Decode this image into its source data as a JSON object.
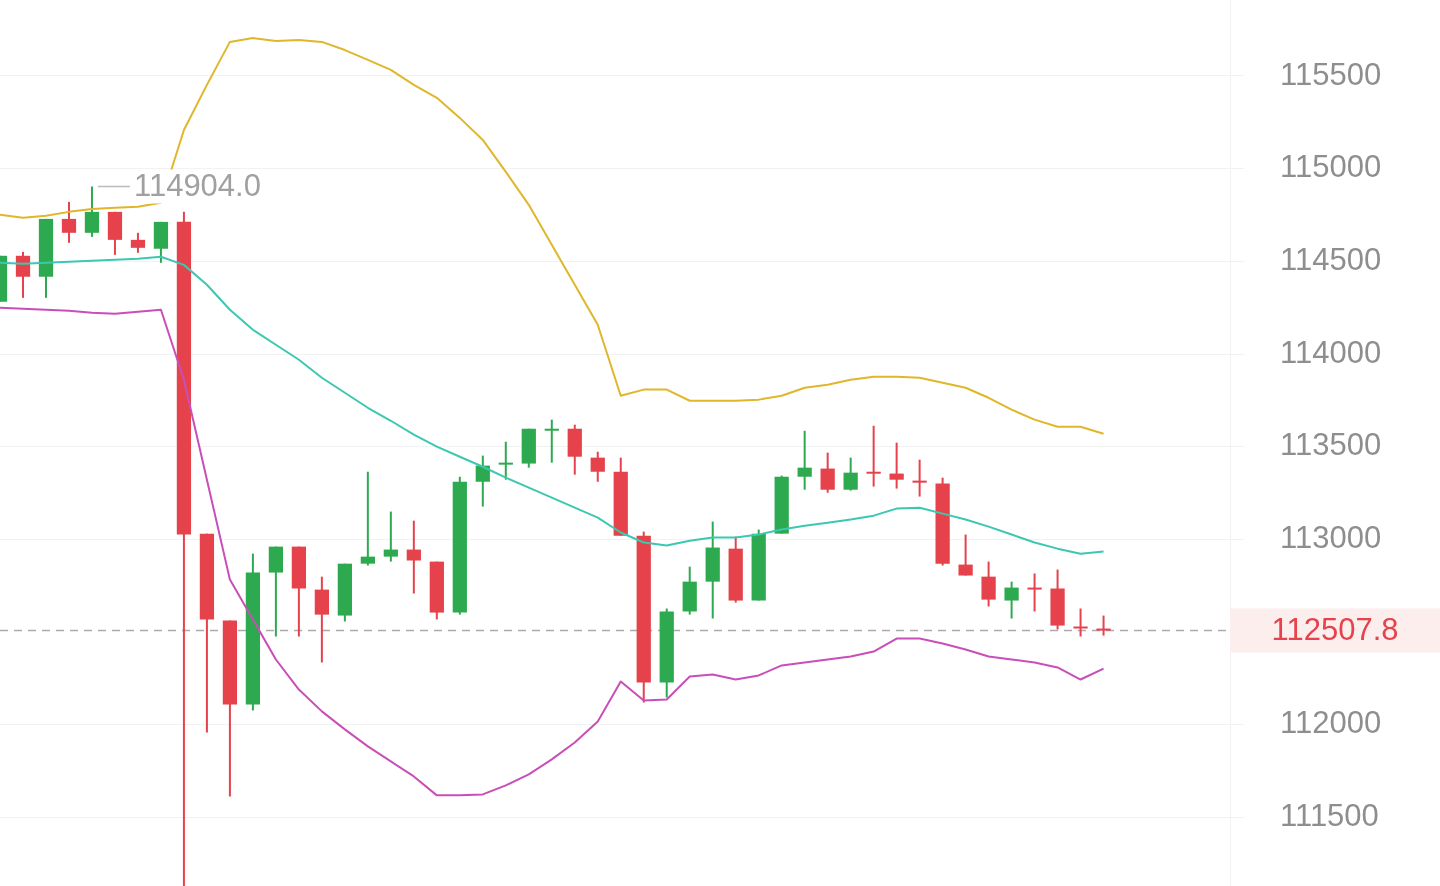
{
  "chart_data": {
    "type": "candlestick",
    "categories": [
      null,
      null,
      null,
      null,
      null,
      null,
      null,
      null,
      null,
      null,
      null,
      null,
      null,
      null,
      null,
      null,
      null,
      null,
      null,
      null,
      null,
      null,
      null,
      null,
      null,
      null,
      null,
      null,
      null,
      null,
      null,
      null,
      null,
      null,
      null,
      null,
      null,
      null,
      null,
      null,
      null,
      null,
      null,
      null,
      null,
      null,
      null,
      null,
      null
    ],
    "ohlc": [
      [
        114282,
        114530,
        114282,
        114530
      ],
      [
        114530,
        114551,
        114303,
        114417
      ],
      [
        114417,
        114729,
        114303,
        114729
      ],
      [
        114729,
        114821,
        114600,
        114654
      ],
      [
        114654,
        114904,
        114632,
        114767
      ],
      [
        114767,
        114767,
        114535,
        114616
      ],
      [
        114616,
        114654,
        114546,
        114573
      ],
      [
        114568,
        114713,
        114492,
        114713
      ],
      [
        114713,
        114767,
        111130,
        113026
      ],
      [
        113031,
        113031,
        111958,
        112568
      ],
      [
        112562,
        112562,
        111613,
        112109
      ],
      [
        112109,
        112923,
        112077,
        112821
      ],
      [
        112821,
        112961,
        112476,
        112961
      ],
      [
        112961,
        112961,
        112476,
        112735
      ],
      [
        112729,
        112799,
        112336,
        112594
      ],
      [
        112589,
        112869,
        112557,
        112869
      ],
      [
        112869,
        113365,
        112859,
        112907
      ],
      [
        112907,
        113150,
        112880,
        112945
      ],
      [
        112945,
        113101,
        112708,
        112886
      ],
      [
        112880,
        112880,
        112568,
        112605
      ],
      [
        112605,
        113338,
        112594,
        113311
      ],
      [
        113311,
        113452,
        113177,
        113398
      ],
      [
        113409,
        113527,
        113322,
        113414
      ],
      [
        113409,
        113597,
        113387,
        113597
      ],
      [
        113592,
        113646,
        113414,
        113597
      ],
      [
        113597,
        113619,
        113349,
        113446
      ],
      [
        113441,
        113473,
        113311,
        113365
      ],
      [
        113365,
        113441,
        113020,
        113020
      ],
      [
        113020,
        113042,
        112120,
        112228
      ],
      [
        112228,
        112627,
        112147,
        112611
      ],
      [
        112611,
        112853,
        112594,
        112772
      ],
      [
        112772,
        113096,
        112573,
        112956
      ],
      [
        112950,
        113015,
        112659,
        112670
      ],
      [
        112670,
        113053,
        112670,
        113031
      ],
      [
        113031,
        113344,
        113031,
        113338
      ],
      [
        113338,
        113586,
        113268,
        113387
      ],
      [
        113382,
        113468,
        113252,
        113268
      ],
      [
        113268,
        113441,
        113263,
        113360
      ],
      [
        113365,
        113613,
        113285,
        113360
      ],
      [
        113355,
        113522,
        113274,
        113322
      ],
      [
        113317,
        113430,
        113231,
        113306
      ],
      [
        113301,
        113333,
        112859,
        112869
      ],
      [
        112864,
        113026,
        112805,
        112805
      ],
      [
        112799,
        112880,
        112638,
        112675
      ],
      [
        112670,
        112772,
        112573,
        112740
      ],
      [
        112740,
        112816,
        112611,
        112735
      ],
      [
        112735,
        112837,
        112514,
        112535
      ],
      [
        112530,
        112627,
        112476,
        112524
      ],
      [
        112519,
        112589,
        112481,
        112507.8
      ]
    ],
    "colors": [
      "#2daa4f",
      "#e5424c",
      "#2daa4f",
      "#e5424c",
      "#2daa4f",
      "#e5424c",
      "#e5424c",
      "#2daa4f",
      "#e5424c",
      "#e5424c",
      "#e5424c",
      "#2daa4f",
      "#2daa4f",
      "#e5424c",
      "#e5424c",
      "#2daa4f",
      "#2daa4f",
      "#2daa4f",
      "#e5424c",
      "#e5424c",
      "#2daa4f",
      "#2daa4f",
      "#2daa4f",
      "#2daa4f",
      "#2daa4f",
      "#e5424c",
      "#e5424c",
      "#e5424c",
      "#e5424c",
      "#2daa4f",
      "#2daa4f",
      "#2daa4f",
      "#e5424c",
      "#2daa4f",
      "#2daa4f",
      "#2daa4f",
      "#e5424c",
      "#2daa4f",
      "#e5424c",
      "#e5424c",
      "#e5424c",
      "#e5424c",
      "#e5424c",
      "#e5424c",
      "#2daa4f",
      "#e5424c",
      "#e5424c",
      "#e5424c",
      "#e5424c"
    ],
    "series": [
      {
        "type": "line",
        "color": "#e0b62a",
        "values": [
          114751,
          114735,
          114746,
          114767,
          114783,
          114789,
          114794,
          114816,
          115209,
          115452,
          115684,
          115705,
          115689,
          115694,
          115684,
          115640,
          115587,
          115533,
          115452,
          115382,
          115274,
          115155,
          114983,
          114805,
          114589,
          114374,
          114158,
          113775,
          113808,
          113808,
          113748,
          113748,
          113748,
          113754,
          113775,
          113818,
          113834,
          113861,
          113878,
          113878,
          113872,
          113845,
          113818,
          113764,
          113700,
          113646,
          113608,
          113608,
          113570
        ]
      },
      {
        "type": "line",
        "color": "#3cc8b0",
        "values": [
          114492,
          114487,
          114492,
          114498,
          114503,
          114508,
          114514,
          114525,
          114481,
          114374,
          114239,
          114131,
          114050,
          113969,
          113872,
          113791,
          113710,
          113640,
          113565,
          113500,
          113446,
          113392,
          113333,
          113279,
          113225,
          113171,
          113117,
          113037,
          112983,
          112967,
          112993,
          113010,
          113010,
          113026,
          113053,
          113074,
          113090,
          113107,
          113128,
          113166,
          113171,
          113139,
          113107,
          113069,
          113026,
          112983,
          112950,
          112923,
          112934
        ]
      },
      {
        "type": "line",
        "color": "#c84fb8",
        "values": [
          114250,
          114244,
          114239,
          114233,
          114223,
          114217,
          114228,
          114239,
          113861,
          113322,
          112783,
          112568,
          112352,
          112190,
          112072,
          111975,
          111883,
          111802,
          111721,
          111619,
          111619,
          111624,
          111673,
          111732,
          111813,
          111904,
          112018,
          112233,
          112131,
          112136,
          112260,
          112271,
          112244,
          112266,
          112320,
          112336,
          112352,
          112368,
          112395,
          112465,
          112465,
          112438,
          112406,
          112368,
          112352,
          112336,
          112309,
          112244,
          112303
        ]
      }
    ],
    "ylim": [
      111130,
      115910
    ],
    "yticks": [
      111500,
      112000,
      113000,
      113500,
      114000,
      114500,
      115000,
      115500
    ],
    "grid": "y",
    "tick_labels": "y",
    "ref_lines": [
      {
        "axis": "y",
        "value": 112507.8,
        "label": "112507.8",
        "color": "#aaaaaa",
        "line_style": "dashed"
      }
    ],
    "annotations": [
      "114904.0"
    ]
  }
}
